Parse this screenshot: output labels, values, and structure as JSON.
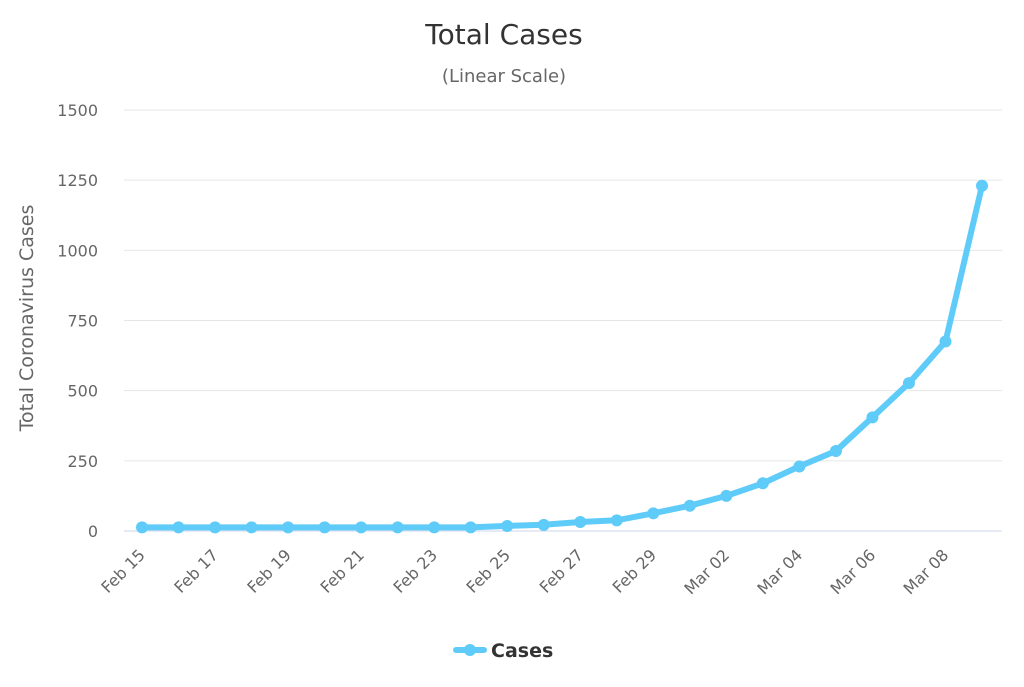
{
  "chart_data": {
    "type": "line",
    "title": "Total Cases",
    "subtitle": "(Linear Scale)",
    "ylabel": "Total Coronavirus Cases",
    "xlabel": "",
    "ylim": [
      0,
      1500
    ],
    "yticks": [
      "0",
      "250",
      "500",
      "750",
      "1000",
      "1250",
      "1500"
    ],
    "ytick_values": [
      0,
      250,
      500,
      750,
      1000,
      1250,
      1500
    ],
    "x": [
      "Feb 15",
      "Feb 16",
      "Feb 17",
      "Feb 18",
      "Feb 19",
      "Feb 20",
      "Feb 21",
      "Feb 22",
      "Feb 23",
      "Feb 24",
      "Feb 25",
      "Feb 26",
      "Feb 27",
      "Feb 28",
      "Feb 29",
      "Mar 01",
      "Mar 02",
      "Mar 03",
      "Mar 04",
      "Mar 05",
      "Mar 06",
      "Mar 07",
      "Mar 08",
      "Mar 09"
    ],
    "xticks": [
      "Feb 15",
      "Feb 17",
      "Feb 19",
      "Feb 21",
      "Feb 23",
      "Feb 25",
      "Feb 27",
      "Feb 29",
      "Mar 02",
      "Mar 04",
      "Mar 06",
      "Mar 08"
    ],
    "series": [
      {
        "name": "Cases",
        "color": "#5fcbf8",
        "values": [
          13,
          13,
          13,
          13,
          13,
          13,
          13,
          13,
          13,
          13,
          18,
          22,
          32,
          38,
          63,
          90,
          125,
          170,
          230,
          285,
          405,
          527,
          675,
          1230
        ]
      }
    ],
    "grid": true,
    "legend": "bottom-center"
  }
}
